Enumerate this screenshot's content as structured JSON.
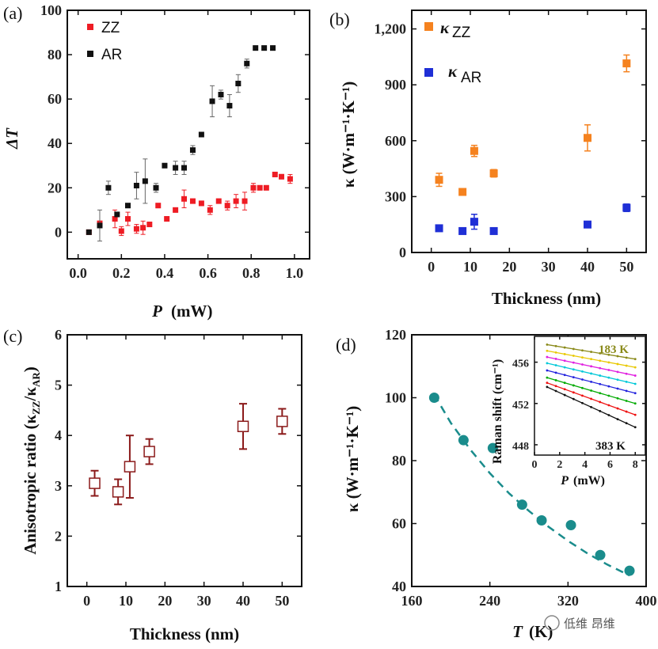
{
  "watermark": "低维 昂维",
  "chart_data": [
    {
      "panel": "(a)",
      "type": "scatter",
      "xlabel_sym": "P",
      "xlabel_unit": "(mW)",
      "ylabel": "ΔT",
      "xlim": [
        -0.05,
        1.07
      ],
      "ylim": [
        -12,
        100
      ],
      "xticks": [
        0.0,
        0.2,
        0.4,
        0.6,
        0.8,
        1.0
      ],
      "xticklabels": [
        "0.0",
        "0.2",
        "0.4",
        "0.6",
        "0.8",
        "1.0"
      ],
      "yticks": [
        0,
        20,
        40,
        60,
        80,
        100
      ],
      "yticklabels": [
        "0",
        "20",
        "40",
        "60",
        "80",
        "100"
      ],
      "series": [
        {
          "name": "ZZ",
          "color": "#ee1c24",
          "x": [
            0.05,
            0.1,
            0.17,
            0.2,
            0.23,
            0.27,
            0.3,
            0.33,
            0.37,
            0.41,
            0.45,
            0.49,
            0.53,
            0.57,
            0.61,
            0.65,
            0.69,
            0.73,
            0.77,
            0.81,
            0.84,
            0.87,
            0.91,
            0.94,
            0.98
          ],
          "y": [
            0,
            4,
            6,
            0.5,
            6,
            1.5,
            2,
            3.5,
            12,
            6,
            10,
            15,
            14,
            13,
            10,
            14,
            12,
            14,
            14,
            20,
            20,
            20,
            26,
            25,
            24
          ],
          "err": [
            0,
            0,
            4,
            2,
            3,
            2,
            3,
            1,
            1,
            1,
            1,
            4,
            1,
            1,
            2,
            1,
            2,
            3,
            4,
            2,
            1,
            1,
            1,
            1,
            2
          ]
        },
        {
          "name": "AR",
          "color": "#111111",
          "x": [
            0.05,
            0.1,
            0.14,
            0.18,
            0.23,
            0.27,
            0.31,
            0.36,
            0.4,
            0.45,
            0.49,
            0.53,
            0.57,
            0.62,
            0.66,
            0.7,
            0.74,
            0.78,
            0.82,
            0.86,
            0.9
          ],
          "y": [
            0,
            3,
            20,
            8,
            12,
            21,
            23,
            20,
            30,
            29,
            29,
            37,
            44,
            59,
            62,
            57,
            67,
            76,
            83,
            83,
            83
          ],
          "err": [
            0,
            7,
            3,
            1,
            1,
            6,
            10,
            2,
            1,
            3,
            3,
            2,
            1,
            7,
            2,
            5,
            4,
            2,
            1,
            1,
            1
          ]
        }
      ]
    },
    {
      "panel": "(b)",
      "type": "scatter",
      "xlabel": "Thickness (nm)",
      "ylabel": "κ (W·m⁻¹·K⁻¹)",
      "xlim": [
        -5,
        55
      ],
      "ylim": [
        0,
        1300
      ],
      "xticks": [
        0,
        10,
        20,
        30,
        40,
        50
      ],
      "xticklabels": [
        "0",
        "10",
        "20",
        "30",
        "40",
        "50"
      ],
      "yticks": [
        0,
        300,
        600,
        900,
        1200
      ],
      "yticklabels": [
        "0",
        "300",
        "600",
        "900",
        "1,200"
      ],
      "series": [
        {
          "name": "κZZ",
          "sym": "κ",
          "sub": "ZZ",
          "color": "#f5821f",
          "x": [
            2,
            8,
            11,
            16,
            40,
            50
          ],
          "y": [
            390,
            325,
            545,
            425,
            615,
            1015
          ],
          "err": [
            35,
            15,
            30,
            20,
            70,
            45
          ]
        },
        {
          "name": "κAR",
          "sym": "κ",
          "sub": "AR",
          "color": "#1f2fd6",
          "x": [
            2,
            8,
            11,
            16,
            40,
            50
          ],
          "y": [
            130,
            115,
            165,
            115,
            150,
            240
          ],
          "err": [
            15,
            10,
            40,
            10,
            15,
            20
          ]
        }
      ]
    },
    {
      "panel": "(c)",
      "type": "scatter",
      "xlabel": "Thickness (nm)",
      "ylabel_prefix": "Anisotropic ratio (κ",
      "ylabel_sub1": "ZZ",
      "ylabel_mid": "/κ",
      "ylabel_sub2": "AR",
      "ylabel_suffix": ")",
      "xlim": [
        -5,
        55
      ],
      "ylim": [
        1,
        6
      ],
      "xticks": [
        0,
        10,
        20,
        30,
        40,
        50
      ],
      "xticklabels": [
        "0",
        "10",
        "20",
        "30",
        "40",
        "50"
      ],
      "yticks": [
        1,
        2,
        3,
        4,
        5,
        6
      ],
      "yticklabels": [
        "1",
        "2",
        "3",
        "4",
        "5",
        "6"
      ],
      "series": [
        {
          "name": "ratio",
          "color": "#8b1a1a",
          "x": [
            2,
            8,
            11,
            16,
            40,
            50
          ],
          "y": [
            3.05,
            2.88,
            3.38,
            3.68,
            4.18,
            4.28
          ],
          "err": [
            0.25,
            0.25,
            0.62,
            0.25,
            0.45,
            0.25
          ]
        }
      ]
    },
    {
      "panel": "(d)",
      "type": "scatter",
      "xlabel_sym": "T",
      "xlabel_unit": "(K)",
      "ylabel": "κ (W·m⁻¹·K⁻¹)",
      "xlim": [
        160,
        400
      ],
      "ylim": [
        40,
        120
      ],
      "xticks": [
        160,
        240,
        320,
        400
      ],
      "xticklabels": [
        "160",
        "240",
        "320",
        "400"
      ],
      "yticks": [
        40,
        60,
        80,
        100,
        120
      ],
      "yticklabels": [
        "40",
        "60",
        "80",
        "100",
        "120"
      ],
      "series": [
        {
          "name": "data",
          "color": "#1a8c8c",
          "x": [
            183,
            213,
            243,
            273,
            293,
            323,
            353,
            383
          ],
          "y": [
            100,
            86.5,
            84,
            66,
            61,
            59.5,
            50,
            45
          ]
        },
        {
          "name": "fit",
          "color": "#1a8c8c",
          "dashed": true,
          "x": [
            183,
            200,
            220,
            240,
            260,
            280,
            300,
            320,
            340,
            360,
            383
          ],
          "y": [
            101,
            92,
            83.5,
            76,
            69.5,
            64,
            59,
            54.5,
            50.5,
            47,
            43.5
          ]
        }
      ],
      "inset": {
        "xlabel_sym": "P",
        "xlabel_unit": "(mW)",
        "ylabel": "Raman shift (cm⁻¹)",
        "xlim": [
          0,
          8.8
        ],
        "ylim": [
          447,
          458.5
        ],
        "xticks": [
          0,
          2,
          4,
          6,
          8
        ],
        "xticklabels": [
          "0",
          "2",
          "4",
          "6",
          "8"
        ],
        "yticks": [
          448,
          452,
          456
        ],
        "yticklabels": [
          "448",
          "452",
          "456"
        ],
        "top_label": "183 K",
        "top_label_color": "#8a8a1a",
        "bottom_label": "383 K",
        "bottom_label_color": "#111111",
        "lines": [
          {
            "color": "#8a8a1a",
            "y0": 457.7,
            "y8": 456.3
          },
          {
            "color": "#e8c800",
            "y0": 457.1,
            "y8": 455.5
          },
          {
            "color": "#e020e0",
            "y0": 456.5,
            "y8": 454.7
          },
          {
            "color": "#00c8d8",
            "y0": 455.9,
            "y8": 453.9
          },
          {
            "color": "#2222dd",
            "y0": 455.2,
            "y8": 453.0
          },
          {
            "color": "#00aa00",
            "y0": 454.5,
            "y8": 452.0
          },
          {
            "color": "#ee1111",
            "y0": 454.0,
            "y8": 450.9
          },
          {
            "color": "#111111",
            "y0": 453.6,
            "y8": 449.7
          }
        ]
      }
    }
  ]
}
